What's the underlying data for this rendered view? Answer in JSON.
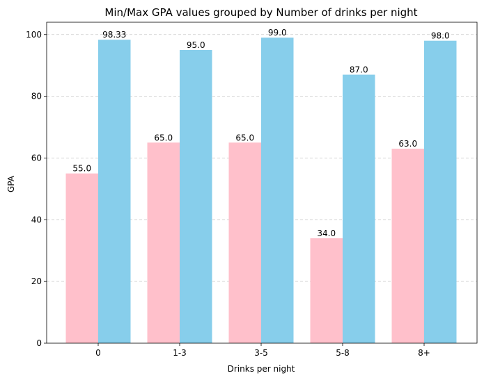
{
  "chart_data": {
    "type": "bar",
    "title": "Min/Max GPA values grouped by Number of drinks per night",
    "xlabel": "Drinks per night",
    "ylabel": "GPA",
    "categories": [
      "0",
      "1-3",
      "3-5",
      "5-8",
      "8+"
    ],
    "series": [
      {
        "values": [
          55.0,
          65.0,
          65.0,
          34.0,
          63.0
        ],
        "labels": [
          "55.0",
          "65.0",
          "65.0",
          "34.0",
          "63.0"
        ],
        "color": "#FFC0CB"
      },
      {
        "values": [
          98.33,
          95.0,
          99.0,
          87.0,
          98.0
        ],
        "labels": [
          "98.33",
          "95.0",
          "99.0",
          "87.0",
          "98.0"
        ],
        "color": "#87CEEB"
      }
    ],
    "ylim": [
      0,
      104
    ],
    "yticks": [
      "0",
      "20",
      "40",
      "60",
      "80",
      "100"
    ],
    "grid": {
      "y": true,
      "style": "dashed"
    },
    "legend": false
  }
}
